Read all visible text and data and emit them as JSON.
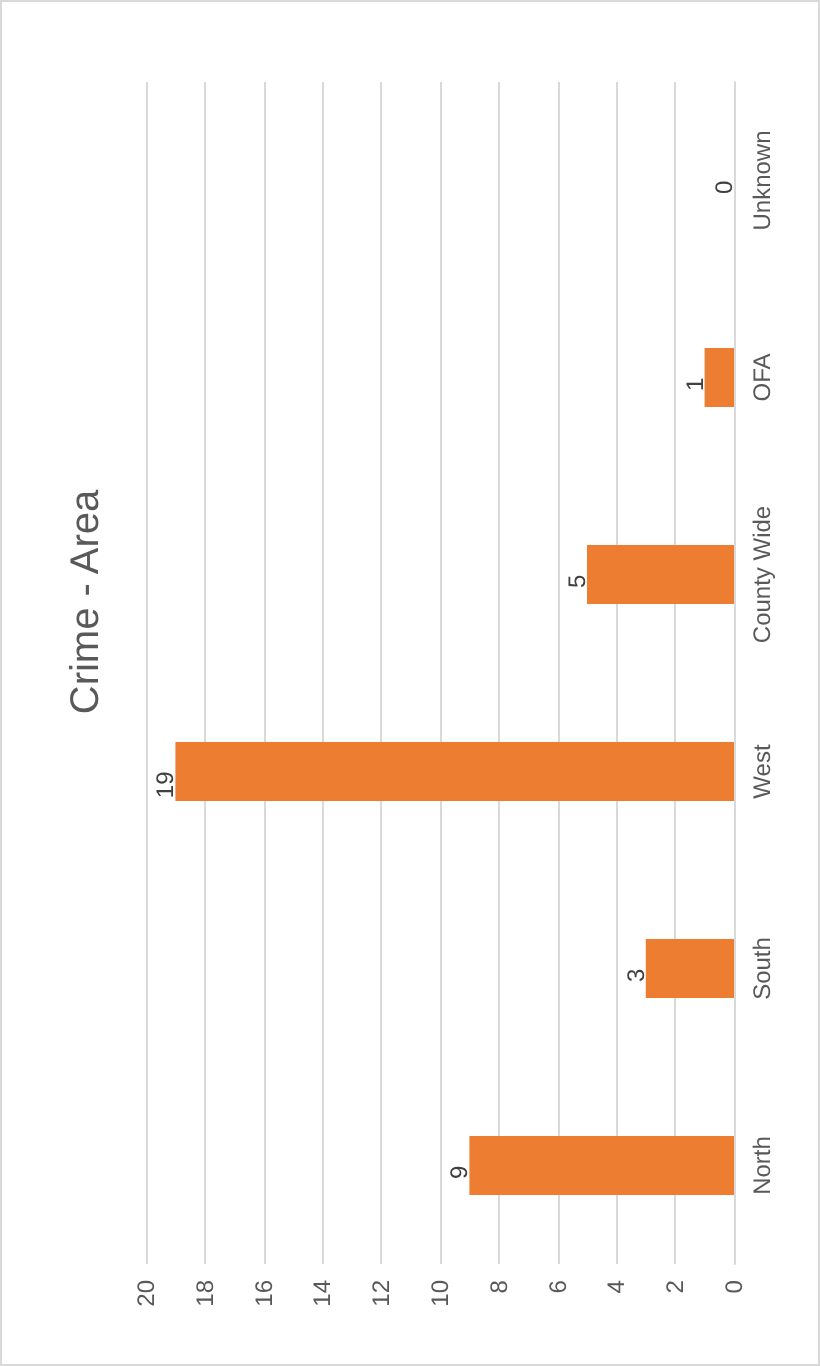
{
  "chart_data": {
    "type": "bar",
    "orientation": "horizontal",
    "title": "Crime - Area",
    "categories": [
      "Unknown",
      "OFA",
      "County Wide",
      "West",
      "South",
      "North"
    ],
    "values": [
      0,
      1,
      5,
      19,
      3,
      9
    ],
    "color": "#ed7d31",
    "xlim": [
      20,
      0
    ],
    "xticks": [
      20,
      18,
      16,
      14,
      12,
      10,
      8,
      6,
      4,
      2,
      0
    ],
    "grid": "x",
    "data_labels": true
  }
}
